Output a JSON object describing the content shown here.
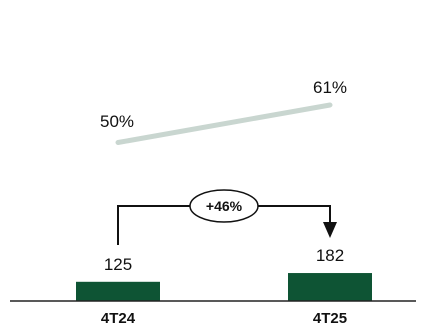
{
  "chart_data": {
    "type": "bar",
    "categories": [
      "4T24",
      "4T25"
    ],
    "series": [
      {
        "values": [
          125,
          182
        ],
        "value_labels": [
          "125",
          "182"
        ],
        "color": "#0e5434"
      }
    ],
    "overlay_line": {
      "values": [
        50,
        61
      ],
      "value_labels": [
        "50%",
        "61%"
      ],
      "color": "#c9d6d0"
    },
    "growth_annotation": {
      "label": "+46%",
      "from": "4T24",
      "to": "4T25"
    },
    "title": "",
    "xlabel": "",
    "ylabel": "",
    "grid": false,
    "legend": "none"
  }
}
